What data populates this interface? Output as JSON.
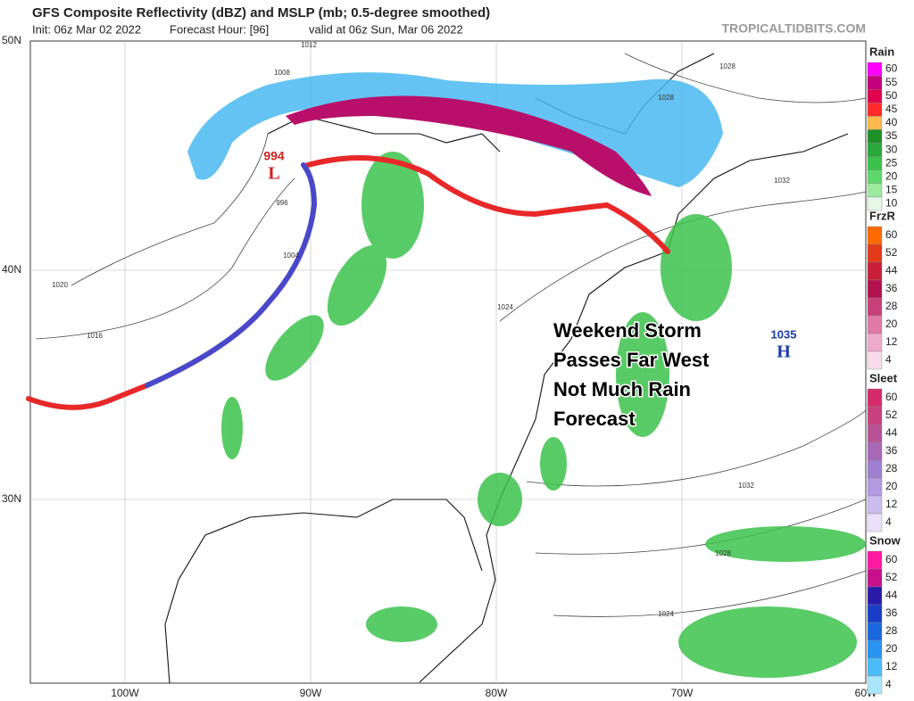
{
  "header": {
    "title": "GFS Composite Reflectivity (dBZ) and MSLP (mb; 0.5-degree smoothed)",
    "init": "Init: 06z Mar 02 2022",
    "forecast_hour": "Forecast Hour: [96]",
    "valid": "valid at 06z Sun, Mar 06 2022",
    "source": "TROPICALTIDBITS.COM"
  },
  "latitude_labels": [
    "50N",
    "40N",
    "30N"
  ],
  "longitude_labels": [
    "100W",
    "90W",
    "80W",
    "70W",
    "60W"
  ],
  "legends": [
    {
      "title": "Rain",
      "levels": [
        60,
        55,
        50,
        45,
        40,
        35,
        30,
        25,
        20,
        15,
        10
      ],
      "colors": [
        "#ff00ff",
        "#c4007e",
        "#e0004e",
        "#ff2a2a",
        "#ffb84d",
        "#1f8f2a",
        "#2aa83a",
        "#3cc24c",
        "#5fd86a",
        "#9bea9e",
        "#e6f7e6"
      ]
    },
    {
      "title": "FrzR",
      "levels": [
        60,
        52,
        44,
        36,
        28,
        20,
        12,
        4
      ],
      "colors": [
        "#ff6a00",
        "#e23a1a",
        "#c81e3a",
        "#b3104e",
        "#c8407a",
        "#e07aa6",
        "#eeaaca",
        "#f8dcea"
      ]
    },
    {
      "title": "Sleet",
      "levels": [
        60,
        52,
        44,
        36,
        28,
        20,
        12,
        4
      ],
      "colors": [
        "#d42c6a",
        "#c8407e",
        "#b85296",
        "#a868b6",
        "#a07ed0",
        "#b49ae0",
        "#ccbcee",
        "#eae0fa"
      ]
    },
    {
      "title": "Snow",
      "levels": [
        60,
        52,
        44,
        36,
        28,
        20,
        12,
        4
      ],
      "colors": [
        "#ff1aa0",
        "#c8108c",
        "#2a1aa8",
        "#1a3cc8",
        "#1a68e0",
        "#2a94f0",
        "#4cbcf8",
        "#a8e6fc"
      ]
    }
  ],
  "pressure_centers": [
    {
      "value": "994",
      "symbol": "L"
    },
    {
      "value": "1035",
      "symbol": "H"
    }
  ],
  "isobar_labels": [
    "1012",
    "1008",
    "1028",
    "1028",
    "1032",
    "996",
    "1004",
    "1020",
    "1016",
    "1024",
    "1032",
    "1028",
    "1024"
  ],
  "annotation": [
    "Weekend Storm",
    "Passes Far West",
    "Not Much Rain",
    "Forecast"
  ]
}
